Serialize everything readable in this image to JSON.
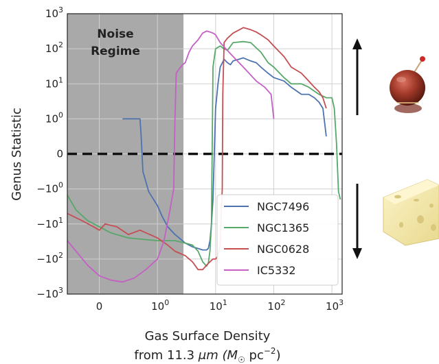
{
  "chart_data": {
    "type": "line",
    "xlabel": "Gas Surface Density",
    "xlabel_line2_prefix": "from 11.3 ",
    "xlabel_unit": "μm (M",
    "xlabel_unit_tail": " pc",
    "xlabel_sup": "−2",
    "ylabel": "Genus Statistic",
    "x_scale": "symlog",
    "y_scale": "symlog",
    "xlim": [
      -0.55,
      1500
    ],
    "ylim": [
      -1000,
      1000
    ],
    "x_ticks": [
      {
        "value": 0,
        "label": "0"
      },
      {
        "value": 1,
        "base": "10",
        "exp": "0"
      },
      {
        "value": 10,
        "base": "10",
        "exp": "1"
      },
      {
        "value": 100,
        "base": "10",
        "exp": "2"
      },
      {
        "value": 1000,
        "base": "10",
        "exp": "3"
      }
    ],
    "y_ticks": [
      {
        "value": 1000,
        "base": "10",
        "exp": "3"
      },
      {
        "value": 100,
        "base": "10",
        "exp": "2"
      },
      {
        "value": 10,
        "base": "10",
        "exp": "1"
      },
      {
        "value": 1,
        "base": "10",
        "exp": "0"
      },
      {
        "value": 0,
        "label": "0"
      },
      {
        "value": -1,
        "base": "−10",
        "exp": "0"
      },
      {
        "value": -10,
        "base": "−10",
        "exp": "1"
      },
      {
        "value": -100,
        "base": "−10",
        "exp": "2"
      },
      {
        "value": -1000,
        "base": "−10",
        "exp": "3"
      }
    ],
    "grid": true,
    "legend_position": "lower-right",
    "noise_region": {
      "x_end": 2.8,
      "label_line1": "Noise",
      "label_line2": "Regime",
      "color": "#a9a9a9"
    },
    "zero_line": {
      "y": 0,
      "style": "dashed",
      "color": "#111111"
    },
    "series": [
      {
        "name": "NGC7496",
        "color": "#4c72b0",
        "points": [
          [
            0.4,
            1
          ],
          [
            0.7,
            1
          ],
          [
            0.72,
            0.5
          ],
          [
            0.75,
            -0.5
          ],
          [
            0.85,
            -1.2
          ],
          [
            1.0,
            -3
          ],
          [
            1.2,
            -6
          ],
          [
            1.5,
            -12
          ],
          [
            2.0,
            -20
          ],
          [
            3.0,
            -35
          ],
          [
            4.0,
            -45
          ],
          [
            5.0,
            -50
          ],
          [
            6.0,
            -55
          ],
          [
            7.0,
            -55
          ],
          [
            7.5,
            -50
          ],
          [
            8.0,
            -30
          ],
          [
            8.5,
            -10
          ],
          [
            9.0,
            -2
          ],
          [
            9.5,
            0
          ],
          [
            10,
            2
          ],
          [
            11,
            10
          ],
          [
            12,
            30
          ],
          [
            14,
            50
          ],
          [
            16,
            40
          ],
          [
            18,
            35
          ],
          [
            20,
            45
          ],
          [
            25,
            50
          ],
          [
            30,
            55
          ],
          [
            40,
            45
          ],
          [
            50,
            40
          ],
          [
            60,
            30
          ],
          [
            80,
            20
          ],
          [
            100,
            15
          ],
          [
            150,
            12
          ],
          [
            200,
            8
          ],
          [
            300,
            5
          ],
          [
            400,
            5
          ],
          [
            500,
            4
          ],
          [
            600,
            3
          ],
          [
            700,
            2
          ],
          [
            800,
            0.5
          ]
        ]
      },
      {
        "name": "NGC1365",
        "color": "#55a868",
        "points": [
          [
            -0.55,
            -1.5
          ],
          [
            -0.4,
            -4
          ],
          [
            -0.2,
            -8
          ],
          [
            0,
            -12
          ],
          [
            0.2,
            -18
          ],
          [
            0.5,
            -25
          ],
          [
            1.0,
            -30
          ],
          [
            1.5,
            -30
          ],
          [
            2.0,
            -30
          ],
          [
            3.0,
            -35
          ],
          [
            4.0,
            -40
          ],
          [
            5.0,
            -60
          ],
          [
            6.0,
            -120
          ],
          [
            7.0,
            -160
          ],
          [
            7.5,
            -130
          ],
          [
            8.0,
            -60
          ],
          [
            8.5,
            -10
          ],
          [
            9.0,
            30
          ],
          [
            10,
            100
          ],
          [
            12,
            120
          ],
          [
            14,
            100
          ],
          [
            16,
            90
          ],
          [
            20,
            150
          ],
          [
            30,
            160
          ],
          [
            40,
            150
          ],
          [
            60,
            80
          ],
          [
            80,
            40
          ],
          [
            100,
            30
          ],
          [
            150,
            15
          ],
          [
            200,
            10
          ],
          [
            300,
            10
          ],
          [
            400,
            8
          ],
          [
            600,
            5
          ],
          [
            800,
            4
          ],
          [
            1000,
            4
          ],
          [
            1100,
            2
          ],
          [
            1200,
            0.3
          ],
          [
            1300,
            -1.2
          ],
          [
            1400,
            -2
          ]
        ]
      },
      {
        "name": "NGC0628",
        "color": "#c44e52",
        "points": [
          [
            -0.55,
            -5
          ],
          [
            -0.3,
            -8
          ],
          [
            -0.1,
            -12
          ],
          [
            0,
            -15
          ],
          [
            0.1,
            -10
          ],
          [
            0.3,
            -12
          ],
          [
            0.5,
            -20
          ],
          [
            0.7,
            -15
          ],
          [
            1.0,
            -25
          ],
          [
            1.5,
            -40
          ],
          [
            2.0,
            -60
          ],
          [
            3.0,
            -80
          ],
          [
            4.0,
            -120
          ],
          [
            5.0,
            -200
          ],
          [
            6.0,
            -200
          ],
          [
            7.0,
            -150
          ],
          [
            8.0,
            -120
          ],
          [
            9.0,
            -100
          ],
          [
            10,
            -100
          ],
          [
            11,
            -80
          ],
          [
            12,
            -40
          ],
          [
            12.5,
            -5
          ],
          [
            13,
            -1
          ],
          [
            13.3,
            5
          ],
          [
            14,
            150
          ],
          [
            16,
            200
          ],
          [
            20,
            280
          ],
          [
            30,
            400
          ],
          [
            40,
            350
          ],
          [
            50,
            300
          ],
          [
            60,
            250
          ],
          [
            80,
            180
          ],
          [
            100,
            120
          ],
          [
            150,
            60
          ],
          [
            200,
            30
          ],
          [
            300,
            20
          ],
          [
            400,
            12
          ],
          [
            500,
            8
          ],
          [
            600,
            6
          ],
          [
            700,
            4
          ],
          [
            800,
            2
          ]
        ]
      },
      {
        "name": "IC5332",
        "color": "#c45fc4",
        "points": [
          [
            -0.55,
            -30
          ],
          [
            -0.4,
            -60
          ],
          [
            -0.2,
            -150
          ],
          [
            0,
            -300
          ],
          [
            0.2,
            -400
          ],
          [
            0.4,
            -450
          ],
          [
            0.6,
            -350
          ],
          [
            0.8,
            -200
          ],
          [
            1.0,
            -100
          ],
          [
            1.3,
            -30
          ],
          [
            1.6,
            -5
          ],
          [
            1.9,
            -1
          ],
          [
            2.0,
            1
          ],
          [
            2.1,
            20
          ],
          [
            2.3,
            25
          ],
          [
            2.5,
            30
          ],
          [
            2.7,
            35
          ],
          [
            3.0,
            40
          ],
          [
            3.5,
            80
          ],
          [
            4.0,
            120
          ],
          [
            5.0,
            180
          ],
          [
            6.0,
            280
          ],
          [
            7.0,
            320
          ],
          [
            8.0,
            300
          ],
          [
            9.0,
            280
          ],
          [
            10,
            250
          ],
          [
            12,
            150
          ],
          [
            15,
            100
          ],
          [
            20,
            60
          ],
          [
            30,
            30
          ],
          [
            50,
            12
          ],
          [
            70,
            8
          ],
          [
            90,
            5
          ],
          [
            100,
            1
          ]
        ]
      }
    ]
  },
  "images": [
    {
      "name": "candy-apple-image",
      "meaning": "above"
    },
    {
      "name": "swiss-cheese-image",
      "meaning": "below"
    }
  ]
}
